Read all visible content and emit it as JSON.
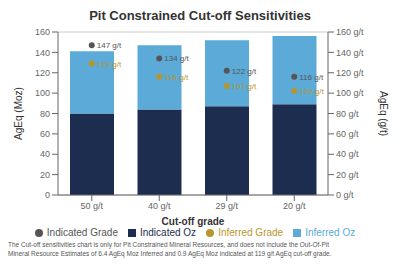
{
  "chart_data": {
    "type": "bar",
    "title": "Pit Constrained Cut-off Sensitivities",
    "xlabel": "Cut-off grade",
    "ylabel": "AgEq (Moz)",
    "y2label": "AgEq (g/t)",
    "categories": [
      "50 g/t",
      "40 g/t",
      "29 g/t",
      "20 g/t"
    ],
    "stacked": true,
    "grid": true,
    "legend": "bottom",
    "series": [
      {
        "name": "Indicated Oz",
        "color": "#1c2d4f",
        "values": [
          80,
          84,
          87,
          89
        ]
      },
      {
        "name": "Inferred Oz",
        "color": "#5baad8",
        "values": [
          61,
          63,
          65,
          67
        ]
      },
      {
        "name": "Indicated Grade",
        "type": "scatter",
        "axis": "y2",
        "marker": "circle",
        "color": "#555555",
        "values": [
          147,
          134,
          122,
          116
        ],
        "value_labels": [
          "147 g/t",
          "134 g/t",
          "122 g/t",
          "116 g/t"
        ]
      },
      {
        "name": "Inferred Grade",
        "type": "scatter",
        "axis": "y2",
        "marker": "circle",
        "color": "#b8962e",
        "values": [
          129,
          116,
          107,
          102
        ],
        "value_labels": [
          "129 g/t",
          "116 g/t",
          "107 g/t",
          "102 g/t"
        ]
      }
    ],
    "ylim": [
      0,
      160
    ],
    "yticks": [
      0,
      20,
      40,
      60,
      80,
      100,
      120,
      140,
      160
    ],
    "y2lim": [
      0,
      160
    ],
    "y2ticks": [
      {
        "value": 0,
        "label": "0 g/t"
      },
      {
        "value": 20,
        "label": "20 g/t"
      },
      {
        "value": 40,
        "label": "40 g/t"
      },
      {
        "value": 60,
        "label": "60 g/t"
      },
      {
        "value": 80,
        "label": "80 g/t"
      },
      {
        "value": 100,
        "label": "100 g/t"
      },
      {
        "value": 120,
        "label": "120 g/t"
      },
      {
        "value": 140,
        "label": "140 g/t"
      },
      {
        "value": 160,
        "label": "160 g/t"
      }
    ],
    "annotations": [
      "The Cut-off sensitivities chart is only for Pit Constrained Mineral Resources, and does not include the Out-Of-Pit",
      "Mineral Resource Estimates of 6.4 AgEq Moz Inferred and 0.9 AgEq Moz indicated at 119 g/t AgEq cut-off grade."
    ]
  }
}
